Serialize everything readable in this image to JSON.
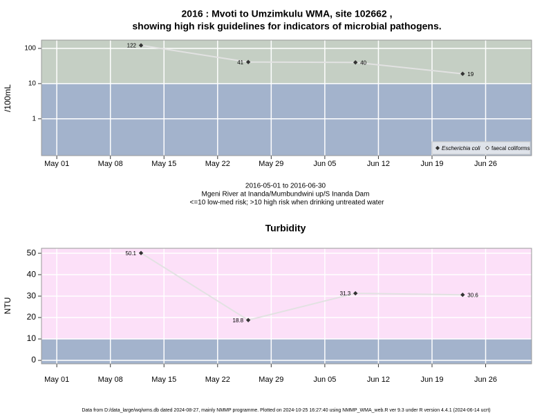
{
  "chart_data": [
    {
      "type": "line",
      "title": [
        "2016 : Mvoti to Umzimkulu WMA, site 102662 ,",
        "showing high risk guidelines for indicators of microbial pathogens."
      ],
      "subtitle": [
        "2016-05-01 to 2016-06-30",
        "Mgeni River at Inanda/Mumbundwini up/S Inanda Dam",
        "<=10 low-med risk; >10 high risk when drinking untreated water"
      ],
      "ylabel": "/100mL",
      "x": [
        "2016-05-12",
        "2016-05-26",
        "2016-06-09",
        "2016-06-23"
      ],
      "series": [
        {
          "name": "Escherichia coli",
          "color": "#333333",
          "values": [
            122,
            41,
            40,
            19
          ]
        },
        {
          "name": "faecal coliforms",
          "color": "#333333",
          "values": [
            null,
            null,
            null,
            null
          ]
        }
      ],
      "xlim": [
        "2016-04-29",
        "2016-07-02"
      ],
      "xticks": [
        {
          "value": "2016-05-01",
          "label": "May 01"
        },
        {
          "value": "2016-05-08",
          "label": "May 08"
        },
        {
          "value": "2016-05-15",
          "label": "May 15"
        },
        {
          "value": "2016-05-22",
          "label": "May 22"
        },
        {
          "value": "2016-05-29",
          "label": "May 29"
        },
        {
          "value": "2016-06-05",
          "label": "Jun 05"
        },
        {
          "value": "2016-06-12",
          "label": "Jun 12"
        },
        {
          "value": "2016-06-19",
          "label": "Jun 19"
        },
        {
          "value": "2016-06-26",
          "label": "Jun 26"
        }
      ],
      "ylim": [
        0.09,
        172
      ],
      "yticks": [
        1,
        10,
        100
      ],
      "log_scale": true,
      "grid": true,
      "threshold": 10,
      "band_colors": {
        "above": "#c5cfc4",
        "below": "#a3b3cc"
      },
      "line_color": "#e2e2e2",
      "legend": "bottom-right"
    },
    {
      "type": "line",
      "title": "Turbidity",
      "ylabel": "NTU",
      "x": [
        "2016-05-12",
        "2016-05-26",
        "2016-06-09",
        "2016-06-23"
      ],
      "series": [
        {
          "color": "#333333",
          "values": [
            50.1,
            18.8,
            31.3,
            30.6
          ]
        }
      ],
      "xlim": [
        "2016-04-29",
        "2016-07-02"
      ],
      "xticks": [
        {
          "value": "2016-05-01",
          "label": "May 01"
        },
        {
          "value": "2016-05-08",
          "label": "May 08"
        },
        {
          "value": "2016-05-15",
          "label": "May 15"
        },
        {
          "value": "2016-05-22",
          "label": "May 22"
        },
        {
          "value": "2016-05-29",
          "label": "May 29"
        },
        {
          "value": "2016-06-05",
          "label": "Jun 05"
        },
        {
          "value": "2016-06-12",
          "label": "Jun 12"
        },
        {
          "value": "2016-06-19",
          "label": "Jun 19"
        },
        {
          "value": "2016-06-26",
          "label": "Jun 26"
        }
      ],
      "ylim": [
        -1.6,
        52.3
      ],
      "yticks": [
        0,
        10,
        20,
        30,
        40,
        50
      ],
      "log_scale": false,
      "grid": true,
      "threshold": 10,
      "band_colors": {
        "above": "#fce0f8",
        "below": "#a3b3cc"
      },
      "line_color": "#e2e2e2"
    }
  ],
  "footer": "Data from D:/data_large/wq/wms.db dated 2024-08-27, mainly NMMP programme. Plotted on 2024-10-25 16:27:40 using NMMP_WMA_web.R ver 9.3 under R version 4.4.1 (2024-06-14 ucrt)"
}
